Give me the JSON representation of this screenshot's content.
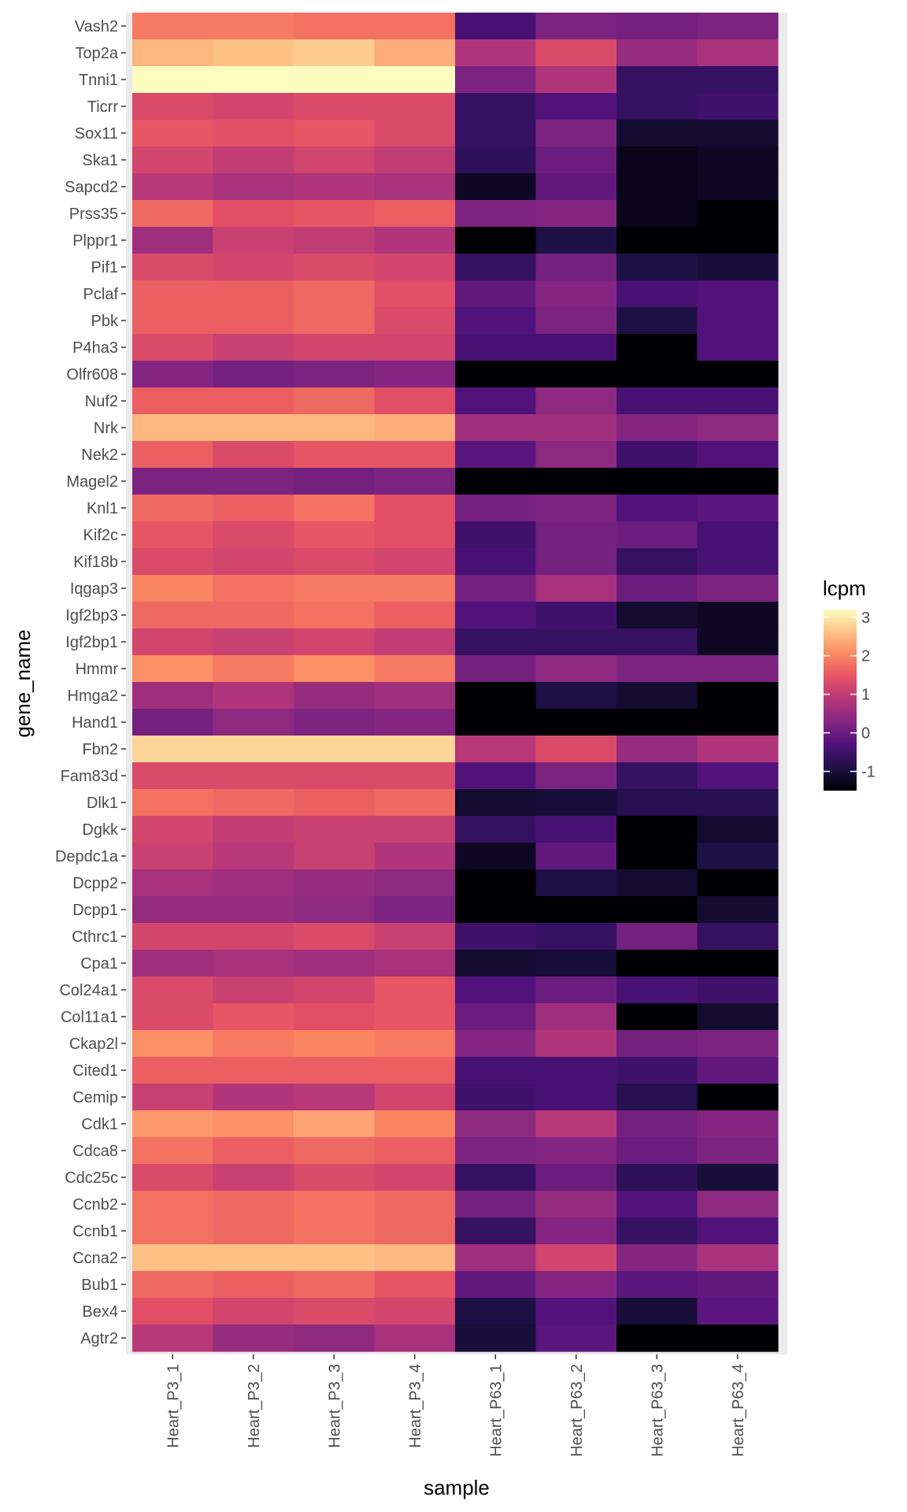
{
  "chart_data": {
    "type": "heatmap",
    "xlabel": "sample",
    "ylabel": "gene_name",
    "legend": {
      "title": "lcpm",
      "ticks": [
        3,
        2,
        1,
        0,
        -1
      ],
      "range": [
        -1.5,
        3.2
      ],
      "placement": "right"
    },
    "colormap": [
      "#000004",
      "#1c1044",
      "#4f127b",
      "#812581",
      "#b5367a",
      "#e55064",
      "#fb8761",
      "#fec287",
      "#fcfdbf"
    ],
    "grid": true,
    "x": [
      "Heart_P3_1",
      "Heart_P3_2",
      "Heart_P3_3",
      "Heart_P3_4",
      "Heart_P63_1",
      "Heart_P63_2",
      "Heart_P63_3",
      "Heart_P63_4"
    ],
    "y": [
      "Vash2",
      "Top2a",
      "Tnni1",
      "Ticrr",
      "Sox11",
      "Ska1",
      "Sapcd2",
      "Prss35",
      "Plppr1",
      "Pif1",
      "Pclaf",
      "Pbk",
      "P4ha3",
      "Olfr608",
      "Nuf2",
      "Nrk",
      "Nek2",
      "Magel2",
      "Knl1",
      "Kif2c",
      "Kif18b",
      "Iqgap3",
      "Igf2bp3",
      "Igf2bp1",
      "Hmmr",
      "Hmga2",
      "Hand1",
      "Fbn2",
      "Fam83d",
      "Dlk1",
      "Dgkk",
      "Depdc1a",
      "Dcpp2",
      "Dcpp1",
      "Cthrc1",
      "Cpa1",
      "Col24a1",
      "Col11a1",
      "Ckap2l",
      "Cited1",
      "Cemip",
      "Cdk1",
      "Cdca8",
      "Cdc25c",
      "Ccnb2",
      "Ccnb1",
      "Ccna2",
      "Bub1",
      "Bex4",
      "Agtr2"
    ],
    "values": [
      [
        1.9,
        1.9,
        1.8,
        1.8,
        -0.4,
        0.2,
        0.1,
        0.2
      ],
      [
        2.5,
        2.6,
        2.7,
        2.4,
        0.8,
        1.3,
        0.5,
        0.7
      ],
      [
        3.2,
        3.3,
        3.3,
        3.3,
        0.2,
        0.8,
        -0.6,
        -0.6
      ],
      [
        1.3,
        1.2,
        1.3,
        1.3,
        -0.6,
        -0.3,
        -0.6,
        -0.5
      ],
      [
        1.5,
        1.4,
        1.5,
        1.3,
        -0.6,
        0.2,
        -1.1,
        -1.1
      ],
      [
        1.2,
        1.0,
        1.2,
        1.0,
        -0.7,
        0.0,
        -1.3,
        -1.2
      ],
      [
        0.9,
        0.7,
        0.8,
        0.7,
        -1.2,
        -0.1,
        -1.3,
        -1.2
      ],
      [
        1.7,
        1.4,
        1.5,
        1.6,
        0.2,
        0.3,
        -1.3,
        -1.8
      ],
      [
        0.6,
        1.1,
        1.0,
        0.8,
        -1.8,
        -0.9,
        -1.8,
        -1.8
      ],
      [
        1.3,
        1.2,
        1.3,
        1.2,
        -0.6,
        0.1,
        -0.9,
        -1.0
      ],
      [
        1.6,
        1.6,
        1.7,
        1.4,
        -0.1,
        0.3,
        -0.4,
        -0.3
      ],
      [
        1.6,
        1.6,
        1.7,
        1.3,
        -0.3,
        0.2,
        -0.9,
        -0.3
      ],
      [
        1.3,
        1.1,
        1.2,
        1.2,
        -0.4,
        -0.4,
        -1.8,
        -0.3
      ],
      [
        0.3,
        0.1,
        0.2,
        0.3,
        -1.8,
        -1.8,
        -1.8,
        -1.8
      ],
      [
        1.6,
        1.6,
        1.7,
        1.4,
        -0.3,
        0.4,
        -0.4,
        -0.4
      ],
      [
        2.5,
        2.5,
        2.5,
        2.4,
        0.6,
        0.6,
        0.3,
        0.4
      ],
      [
        1.6,
        1.3,
        1.5,
        1.5,
        -0.2,
        0.4,
        -0.5,
        -0.3
      ],
      [
        0.2,
        0.2,
        0.1,
        0.2,
        -1.8,
        -1.8,
        -1.8,
        -1.8
      ],
      [
        1.7,
        1.6,
        1.8,
        1.4,
        0.1,
        0.2,
        -0.3,
        -0.2
      ],
      [
        1.5,
        1.3,
        1.5,
        1.4,
        -0.5,
        0.1,
        0.0,
        -0.4
      ],
      [
        1.3,
        1.2,
        1.3,
        1.2,
        -0.4,
        0.1,
        -0.6,
        -0.4
      ],
      [
        2.0,
        1.8,
        1.9,
        1.9,
        0.1,
        0.7,
        0.0,
        0.2
      ],
      [
        1.7,
        1.7,
        1.8,
        1.6,
        -0.3,
        -0.5,
        -1.1,
        -1.2
      ],
      [
        1.2,
        1.1,
        1.2,
        1.0,
        -0.6,
        -0.6,
        -0.6,
        -1.2
      ],
      [
        2.1,
        1.9,
        2.1,
        1.9,
        0.1,
        0.4,
        0.2,
        0.2
      ],
      [
        0.6,
        0.8,
        0.5,
        0.6,
        -1.8,
        -0.9,
        -1.1,
        -1.8
      ],
      [
        0.1,
        0.4,
        0.2,
        0.3,
        -1.8,
        -1.8,
        -1.8,
        -1.8
      ],
      [
        2.8,
        2.8,
        2.8,
        2.8,
        0.9,
        1.3,
        0.5,
        0.8
      ],
      [
        1.3,
        1.3,
        1.3,
        1.3,
        -0.3,
        0.2,
        -0.6,
        -0.3
      ],
      [
        1.8,
        1.7,
        1.6,
        1.7,
        -1.1,
        -1.0,
        -0.8,
        -0.8
      ],
      [
        1.2,
        1.0,
        1.1,
        1.1,
        -0.6,
        -0.4,
        -1.8,
        -1.1
      ],
      [
        1.1,
        0.9,
        1.1,
        0.8,
        -1.2,
        -0.1,
        -1.8,
        -0.9
      ],
      [
        0.7,
        0.6,
        0.5,
        0.4,
        -1.8,
        -0.9,
        -1.1,
        -1.8
      ],
      [
        0.5,
        0.5,
        0.4,
        0.2,
        -1.8,
        -1.8,
        -1.8,
        -1.1
      ],
      [
        1.2,
        1.2,
        1.3,
        1.1,
        -0.5,
        -0.6,
        0.1,
        -0.6
      ],
      [
        0.6,
        0.7,
        0.6,
        0.7,
        -1.1,
        -1.0,
        -1.8,
        -1.8
      ],
      [
        1.3,
        1.1,
        1.2,
        1.5,
        -0.3,
        0.0,
        -0.4,
        -0.5
      ],
      [
        1.3,
        1.5,
        1.4,
        1.5,
        0.0,
        0.6,
        -1.8,
        -1.1
      ],
      [
        2.1,
        1.9,
        2.0,
        1.9,
        0.3,
        0.8,
        0.1,
        0.2
      ],
      [
        1.6,
        1.6,
        1.6,
        1.6,
        -0.4,
        -0.4,
        -0.5,
        -0.1
      ],
      [
        1.1,
        0.8,
        0.9,
        1.2,
        -0.5,
        -0.4,
        -0.8,
        -1.8
      ],
      [
        2.2,
        2.1,
        2.3,
        2.0,
        0.4,
        0.9,
        0.1,
        0.3
      ],
      [
        1.8,
        1.6,
        1.7,
        1.6,
        0.2,
        0.3,
        0.0,
        0.2
      ],
      [
        1.3,
        1.1,
        1.3,
        1.2,
        -0.6,
        0.0,
        -0.7,
        -1.0
      ],
      [
        1.8,
        1.7,
        1.8,
        1.7,
        0.1,
        0.5,
        -0.3,
        0.4
      ],
      [
        1.8,
        1.7,
        1.8,
        1.7,
        -0.6,
        0.3,
        -0.6,
        -0.3
      ],
      [
        2.6,
        2.6,
        2.6,
        2.5,
        0.6,
        1.2,
        0.3,
        0.7
      ],
      [
        1.7,
        1.6,
        1.7,
        1.5,
        -0.1,
        0.3,
        -0.2,
        -0.1
      ],
      [
        1.4,
        1.2,
        1.3,
        1.2,
        -0.9,
        -0.3,
        -1.0,
        -0.2
      ],
      [
        0.9,
        0.5,
        0.4,
        0.7,
        -1.0,
        -0.2,
        -1.8,
        -1.8
      ]
    ]
  }
}
